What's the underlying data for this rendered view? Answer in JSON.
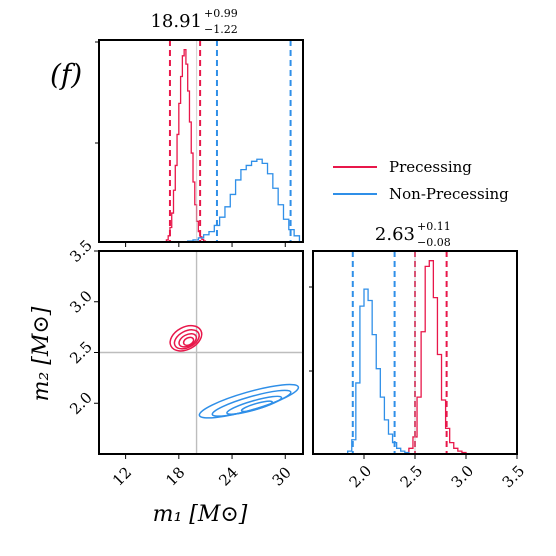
{
  "panel_label": "(f)",
  "colors": {
    "precessing": "#e8174a",
    "non_precessing": "#2f8fe8",
    "truth": "#bdbdbd"
  },
  "chart_data": [
    {
      "type": "histogram",
      "panel": "m1 marginal",
      "title": {
        "main": "18.91",
        "sup": "+0.99",
        "sub": "−1.22"
      },
      "xlim": [
        9,
        32
      ],
      "series": [
        {
          "name": "Precessing",
          "color": "#e8174a",
          "bins": [
            16.6,
            16.8,
            17.0,
            17.2,
            17.4,
            17.6,
            17.8,
            18.0,
            18.2,
            18.4,
            18.6,
            18.8,
            19.0,
            19.2,
            19.4,
            19.6,
            19.8,
            20.0,
            20.2,
            20.4,
            20.6,
            20.8,
            21.0
          ],
          "density": [
            0.01,
            0.03,
            0.07,
            0.14,
            0.25,
            0.37,
            0.52,
            0.67,
            0.8,
            0.9,
            0.93,
            0.86,
            0.73,
            0.58,
            0.43,
            0.29,
            0.18,
            0.1,
            0.05,
            0.025,
            0.012,
            0.005
          ],
          "quantiles": [
            17.0,
            20.4
          ]
        },
        {
          "name": "Non-Precessing",
          "color": "#2f8fe8",
          "bins": [
            19.0,
            19.6,
            20.2,
            20.8,
            21.4,
            22.0,
            22.6,
            23.2,
            23.8,
            24.4,
            25.0,
            25.6,
            26.2,
            26.8,
            27.4,
            28.0,
            28.6,
            29.2,
            29.8,
            30.4,
            31.0,
            31.6
          ],
          "density": [
            0.005,
            0.01,
            0.02,
            0.035,
            0.05,
            0.08,
            0.12,
            0.17,
            0.23,
            0.3,
            0.35,
            0.37,
            0.39,
            0.4,
            0.38,
            0.33,
            0.26,
            0.18,
            0.11,
            0.06,
            0.03
          ],
          "quantiles": [
            22.3,
            30.6
          ]
        }
      ],
      "truth": 20.0
    },
    {
      "type": "histogram",
      "panel": "m2 marginal",
      "title": {
        "main": "2.63",
        "sup": "+0.11",
        "sub": "−0.08"
      },
      "xlim": [
        1.5,
        3.5
      ],
      "xticks": [
        2.0,
        2.5,
        3.0,
        3.5
      ],
      "xtick_labels": [
        "2.0",
        "2.5",
        "3.0",
        "3.5"
      ],
      "series": [
        {
          "name": "Precessing",
          "color": "#e8174a",
          "bins": [
            2.44,
            2.48,
            2.52,
            2.56,
            2.6,
            2.64,
            2.68,
            2.72,
            2.76,
            2.8,
            2.84,
            2.88,
            2.92,
            2.96,
            3.0
          ],
          "density": [
            0.02,
            0.06,
            0.2,
            0.43,
            0.66,
            0.68,
            0.55,
            0.35,
            0.19,
            0.09,
            0.04,
            0.02,
            0.01,
            0.005
          ],
          "quantiles": [
            2.5,
            2.81
          ]
        },
        {
          "name": "Non-Precessing",
          "color": "#2f8fe8",
          "bins": [
            1.84,
            1.88,
            1.92,
            1.96,
            2.0,
            2.04,
            2.08,
            2.12,
            2.16,
            2.2,
            2.24,
            2.28,
            2.32,
            2.36,
            2.4,
            2.44
          ],
          "density": [
            0.01,
            0.05,
            0.25,
            0.52,
            0.58,
            0.54,
            0.42,
            0.3,
            0.2,
            0.12,
            0.07,
            0.04,
            0.02,
            0.01,
            0.005
          ],
          "quantiles": [
            1.89,
            2.3
          ]
        }
      ],
      "truth": 2.5
    },
    {
      "type": "contour",
      "panel": "m1-m2 joint",
      "xlabel": "m₁ [M⊙]",
      "ylabel": "m₂ [M⊙]",
      "xlim": [
        9,
        32
      ],
      "ylim": [
        1.5,
        3.5
      ],
      "xticks": [
        12,
        18,
        24,
        30
      ],
      "xtick_labels": [
        "12",
        "18",
        "24",
        "30"
      ],
      "yticks": [
        2.0,
        2.5,
        3.0,
        3.5
      ],
      "ytick_labels": [
        "2.0",
        "2.5",
        "3.0",
        "3.5"
      ],
      "truth": [
        20.0,
        2.5
      ],
      "series": [
        {
          "name": "Precessing",
          "color": "#e8174a",
          "contours": [
            {
              "cx": 18.8,
              "cy": 2.64,
              "rx": 1.9,
              "ry": 0.11,
              "angle": -28
            },
            {
              "cx": 18.9,
              "cy": 2.63,
              "rx": 1.5,
              "ry": 0.08,
              "angle": -28
            },
            {
              "cx": 19.0,
              "cy": 2.62,
              "rx": 1.05,
              "ry": 0.055,
              "angle": -28
            },
            {
              "cx": 19.1,
              "cy": 2.61,
              "rx": 0.6,
              "ry": 0.035,
              "angle": -28
            }
          ]
        },
        {
          "name": "Non-Precessing",
          "color": "#2f8fe8",
          "contours": [
            {
              "cx": 25.9,
              "cy": 2.02,
              "rx": 5.8,
              "ry": 0.09,
              "angle": -16
            },
            {
              "cx": 26.2,
              "cy": 2.0,
              "rx": 4.6,
              "ry": 0.065,
              "angle": -16
            },
            {
              "cx": 26.5,
              "cy": 1.98,
              "rx": 3.2,
              "ry": 0.045,
              "angle": -16
            },
            {
              "cx": 26.8,
              "cy": 1.97,
              "rx": 1.8,
              "ry": 0.028,
              "angle": -16
            }
          ]
        }
      ]
    }
  ],
  "legend": {
    "entries": [
      {
        "label": "Precessing",
        "color": "#e8174a"
      },
      {
        "label": "Non-Precessing",
        "color": "#2f8fe8"
      }
    ]
  }
}
